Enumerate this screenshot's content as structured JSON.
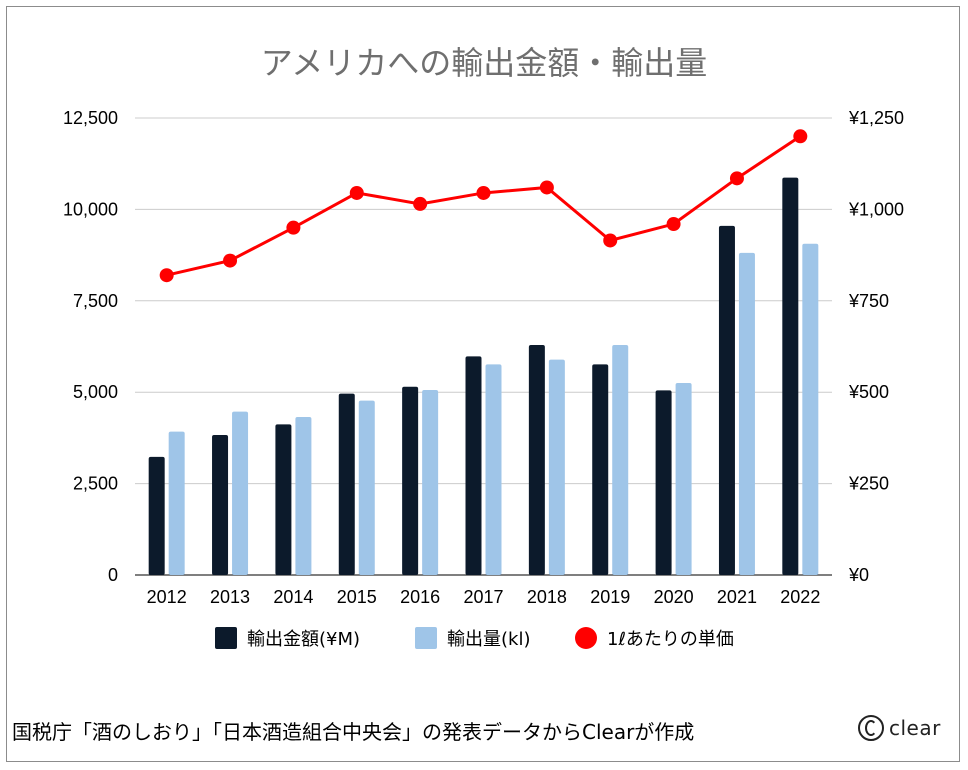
{
  "chart_data": {
    "type": "bar",
    "title": "アメリカへの輸出金額・輸出量",
    "categories": [
      "2012",
      "2013",
      "2014",
      "2015",
      "2016",
      "2017",
      "2018",
      "2019",
      "2020",
      "2021",
      "2022"
    ],
    "series": [
      {
        "name": "輸出金額(¥M)",
        "kind": "bar",
        "axis": "left",
        "color": "#0c1a2b",
        "values": [
          3230,
          3830,
          4120,
          4960,
          5150,
          5980,
          6290,
          5760,
          5050,
          9550,
          10870
        ]
      },
      {
        "name": "輸出量(kl)",
        "kind": "bar",
        "axis": "left",
        "color": "#9fc5e8",
        "values": [
          3920,
          4470,
          4320,
          4770,
          5060,
          5760,
          5890,
          6290,
          5250,
          8810,
          9060
        ]
      },
      {
        "name": "1ℓあたりの単価",
        "kind": "line",
        "axis": "right",
        "color": "#ff0000",
        "values": [
          820,
          860,
          950,
          1045,
          1015,
          1045,
          1060,
          915,
          960,
          1085,
          1200
        ]
      }
    ],
    "left_axis": {
      "ylim": [
        0,
        12500
      ],
      "ticks": [
        "0",
        "2,500",
        "5,000",
        "7,500",
        "10,000",
        "12,500"
      ]
    },
    "right_axis": {
      "ylim": [
        0,
        1250
      ],
      "ticks": [
        "¥0",
        "¥250",
        "¥500",
        "¥750",
        "¥1,000",
        "¥1,250"
      ]
    },
    "grid": true,
    "legend_position": "bottom"
  },
  "source_note": "国税庁「酒のしおり」「日本酒造組合中央会」の発表データからClearが作成",
  "logo_text": "clear"
}
